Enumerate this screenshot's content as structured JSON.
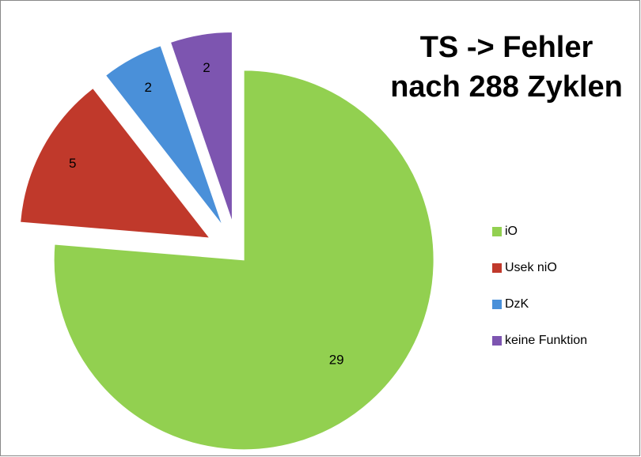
{
  "chart_data": {
    "type": "pie",
    "title": [
      "TS -> Fehler",
      "nach 288 Zyklen"
    ],
    "categories": [
      "iO",
      "Usek niO",
      "DzK",
      "keine Funktion"
    ],
    "values": [
      29,
      5,
      2,
      2
    ],
    "colors": [
      "#92d050",
      "#c0392b",
      "#4a90d9",
      "#7d55b0"
    ],
    "legend": "right"
  }
}
